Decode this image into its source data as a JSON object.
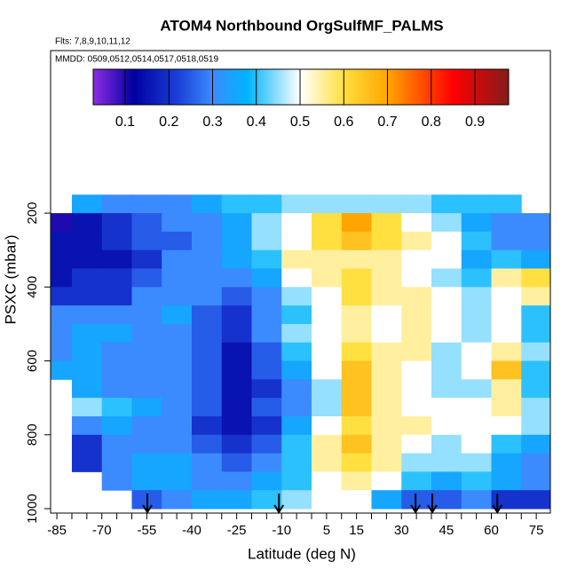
{
  "chart_data": {
    "type": "heatmap",
    "title": "ATOM4 Northbound OrgSulfMF_PALMS",
    "subtitle": "Flts: 7,8,9,10,11,12",
    "annotation": "MMDD: 0509,0512,0514,0517,0518,0519",
    "xlabel": "Latitude (deg N)",
    "ylabel": "PSXC (mbar)",
    "xlim": [
      -87.1,
      79.7
    ],
    "ylim": [
      1012,
      -240
    ],
    "xticks": [
      -85,
      -70,
      -55,
      -40,
      -25,
      -10,
      5,
      15,
      30,
      45,
      60,
      75
    ],
    "xticks_minor": [
      -80,
      -75,
      -65,
      -60,
      -50,
      -45,
      -35,
      -30,
      -20,
      -15,
      -5,
      0,
      10,
      20,
      25,
      35,
      40,
      50,
      55,
      65,
      70
    ],
    "yticks": [
      200,
      400,
      600,
      800,
      1000
    ],
    "cell_size": [
      10,
      50
    ],
    "x": [
      -85,
      -75,
      -65,
      -55,
      -45,
      -35,
      -25,
      -15,
      -5,
      5,
      15,
      25,
      35,
      45,
      55,
      65,
      75
    ],
    "y": [
      175,
      225,
      275,
      325,
      375,
      425,
      475,
      525,
      575,
      625,
      675,
      725,
      775,
      825,
      875,
      925,
      975
    ],
    "z": [
      [
        null,
        0.35,
        0.3,
        0.3,
        0.3,
        0.35,
        0.4,
        0.4,
        0.45,
        0.45,
        0.45,
        0.45,
        0.45,
        0.4,
        0.4,
        0.4,
        null
      ],
      [
        0.1,
        0.15,
        0.2,
        0.25,
        0.3,
        0.3,
        0.35,
        0.45,
        0.5,
        0.6,
        0.7,
        0.6,
        0.5,
        0.45,
        0.35,
        0.3,
        0.3
      ],
      [
        0.15,
        0.15,
        0.2,
        0.25,
        0.25,
        0.3,
        0.35,
        0.45,
        0.5,
        0.6,
        0.65,
        0.6,
        0.55,
        0.5,
        0.4,
        0.3,
        0.3
      ],
      [
        0.15,
        0.15,
        0.15,
        0.2,
        0.3,
        0.3,
        0.35,
        0.4,
        0.55,
        0.55,
        0.55,
        0.55,
        0.5,
        0.5,
        0.35,
        0.4,
        0.35
      ],
      [
        0.15,
        0.2,
        0.2,
        0.25,
        0.3,
        0.3,
        0.3,
        0.35,
        0.5,
        0.55,
        0.6,
        0.55,
        0.5,
        0.45,
        0.4,
        0.55,
        0.6
      ],
      [
        0.2,
        0.2,
        0.2,
        0.3,
        0.3,
        0.3,
        0.25,
        0.3,
        0.45,
        0.5,
        0.6,
        0.55,
        0.55,
        0.5,
        0.45,
        0.5,
        0.55
      ],
      [
        0.3,
        0.3,
        0.3,
        0.3,
        0.35,
        0.25,
        0.2,
        0.3,
        0.4,
        0.5,
        0.55,
        0.5,
        0.55,
        0.5,
        0.45,
        0.5,
        0.4
      ],
      [
        0.3,
        0.35,
        0.35,
        0.3,
        0.3,
        0.25,
        0.2,
        0.3,
        0.45,
        0.5,
        0.55,
        0.5,
        0.55,
        0.5,
        0.45,
        0.5,
        0.4
      ],
      [
        0.3,
        0.35,
        0.3,
        0.3,
        0.3,
        0.25,
        0.15,
        0.25,
        0.4,
        0.5,
        0.6,
        0.55,
        0.55,
        0.45,
        0.5,
        0.55,
        0.45
      ],
      [
        0.35,
        0.35,
        0.3,
        0.3,
        0.3,
        0.25,
        0.15,
        0.25,
        0.35,
        0.5,
        0.65,
        0.55,
        0.5,
        0.45,
        0.5,
        0.65,
        0.4
      ],
      [
        null,
        0.35,
        0.3,
        0.3,
        0.3,
        0.25,
        0.15,
        0.2,
        0.3,
        0.45,
        0.65,
        0.55,
        0.5,
        0.45,
        0.45,
        0.55,
        0.4
      ],
      [
        null,
        0.45,
        0.4,
        0.35,
        0.3,
        0.25,
        0.15,
        0.25,
        0.3,
        0.45,
        0.65,
        0.55,
        0.5,
        0.5,
        0.5,
        0.55,
        0.45
      ],
      [
        null,
        0.3,
        0.35,
        0.3,
        0.3,
        0.2,
        0.15,
        0.2,
        0.35,
        0.5,
        0.6,
        0.55,
        0.55,
        0.5,
        0.5,
        0.5,
        0.45
      ],
      [
        null,
        0.2,
        0.3,
        0.3,
        0.3,
        0.25,
        0.2,
        0.25,
        0.4,
        0.55,
        0.65,
        0.55,
        0.5,
        0.45,
        0.5,
        0.4,
        0.35
      ],
      [
        null,
        0.2,
        0.3,
        0.35,
        0.35,
        0.3,
        0.25,
        0.3,
        0.4,
        0.55,
        0.6,
        0.55,
        0.45,
        0.45,
        0.45,
        0.35,
        0.3
      ],
      [
        null,
        null,
        0.3,
        0.35,
        0.35,
        0.3,
        0.3,
        0.35,
        0.4,
        0.5,
        0.55,
        0.5,
        0.4,
        0.35,
        0.4,
        0.35,
        0.3
      ],
      [
        null,
        null,
        null,
        0.25,
        0.3,
        0.35,
        0.35,
        0.4,
        0.45,
        0.5,
        0.5,
        0.35,
        0.25,
        0.25,
        0.3,
        0.2,
        0.2
      ]
    ],
    "arrows": [
      -54.8,
      -10.9,
      34.7,
      40.3,
      62.0
    ],
    "colorbar": {
      "lim": [
        0.027,
        0.977
      ],
      "ticks": [
        0.1,
        0.2,
        0.3,
        0.4,
        0.5,
        0.6,
        0.7,
        0.8,
        0.9
      ],
      "stops": [
        {
          "value": 0.03,
          "color": "#8a2be2"
        },
        {
          "value": 0.12,
          "color": "#0000a0"
        },
        {
          "value": 0.22,
          "color": "#1a3fd8"
        },
        {
          "value": 0.3,
          "color": "#3b8bff"
        },
        {
          "value": 0.38,
          "color": "#00b4ff"
        },
        {
          "value": 0.5,
          "color": "#ffffff"
        },
        {
          "value": 0.6,
          "color": "#ffe040"
        },
        {
          "value": 0.7,
          "color": "#ffa500"
        },
        {
          "value": 0.85,
          "color": "#ff0000"
        },
        {
          "value": 0.97,
          "color": "#8b1a1a"
        }
      ]
    }
  }
}
